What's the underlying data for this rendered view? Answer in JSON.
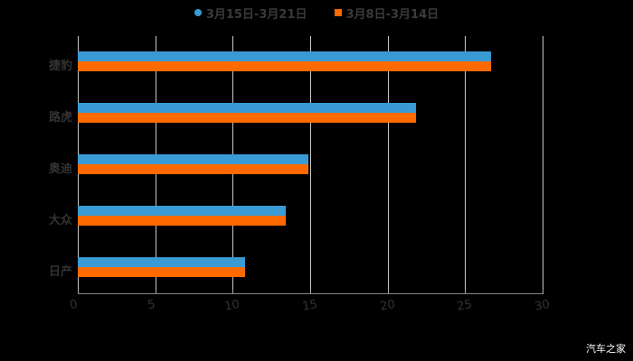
{
  "chart_data": {
    "type": "bar",
    "orientation": "horizontal",
    "title": "",
    "xlabel": "",
    "ylabel": "",
    "xlim": [
      0,
      30
    ],
    "xticks": [
      "0",
      "5",
      "10",
      "15",
      "20",
      "25",
      "30"
    ],
    "categories": [
      "捷豹",
      "路虎",
      "奥迪",
      "大众",
      "日产"
    ],
    "series": [
      {
        "name": "3月15日-3月21日",
        "color": "#3a9ad4",
        "values": [
          26.7,
          21.8,
          14.9,
          13.4,
          10.8
        ]
      },
      {
        "name": "3月8日-3月14日",
        "color": "#ff6a00",
        "values": [
          26.7,
          21.8,
          14.9,
          13.4,
          10.8
        ]
      }
    ],
    "legend_position": "top",
    "grid": "vertical"
  },
  "watermark": "汽车之家"
}
